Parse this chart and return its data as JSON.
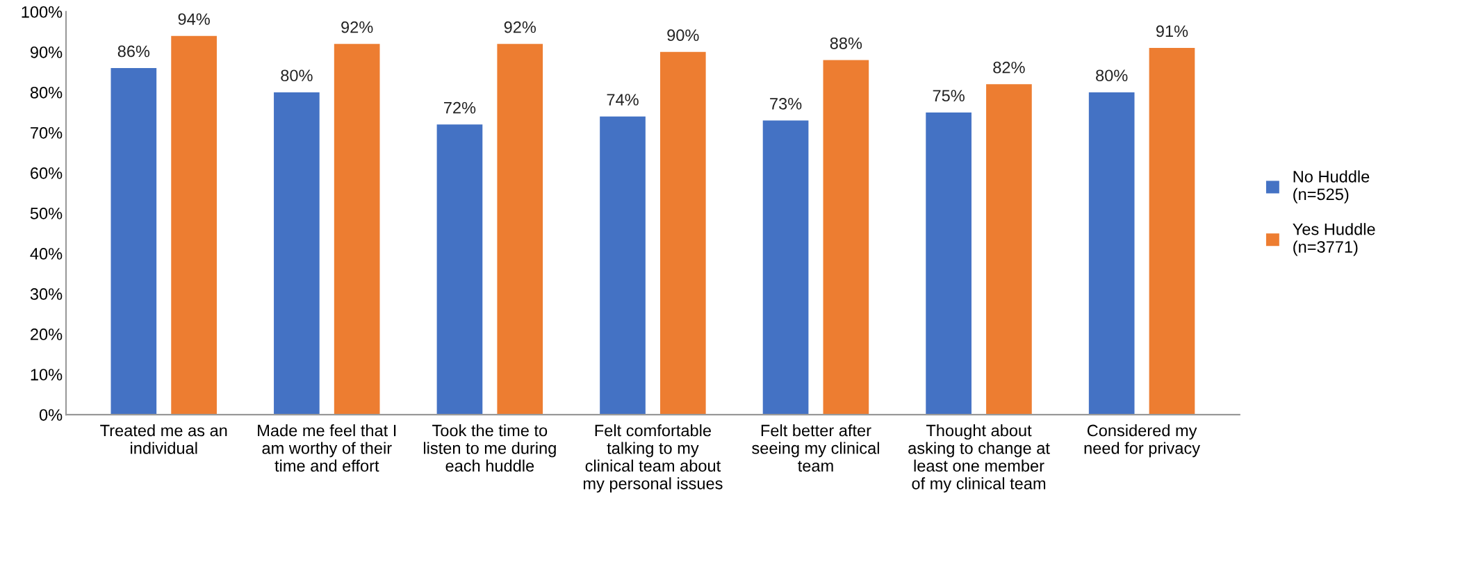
{
  "chart_data": {
    "type": "bar",
    "categories": [
      "Treated me as an\nindividual",
      "Made me feel that I\nam worthy of their\ntime and effort",
      "Took the time to\nlisten to me during\neach huddle",
      "Felt comfortable\ntalking to my\nclinical team about\nmy personal issues",
      "Felt better after\nseeing my clinical\nteam",
      "Thought about\nasking to change at\nleast one member\nof my clinical team",
      "Considered my\nneed for privacy"
    ],
    "series": [
      {
        "name": "No Huddle\n(n=525)",
        "color": "#4472c4",
        "values": [
          86,
          80,
          72,
          74,
          73,
          75,
          80
        ],
        "value_labels": [
          "86%",
          "80%",
          "72%",
          "74%",
          "73%",
          "75%",
          "80%"
        ]
      },
      {
        "name": "Yes Huddle\n(n=3771)",
        "color": "#ed7d31",
        "values": [
          94,
          92,
          92,
          90,
          88,
          82,
          91
        ],
        "value_labels": [
          "94%",
          "92%",
          "92%",
          "90%",
          "88%",
          "82%",
          "91%"
        ]
      }
    ],
    "ylim": [
      0,
      100
    ],
    "yticks": [
      {
        "value": 0,
        "label": "0%"
      },
      {
        "value": 10,
        "label": "10%"
      },
      {
        "value": 20,
        "label": "20%"
      },
      {
        "value": 30,
        "label": "30%"
      },
      {
        "value": 40,
        "label": "40%"
      },
      {
        "value": 50,
        "label": "50%"
      },
      {
        "value": 60,
        "label": "60%"
      },
      {
        "value": 70,
        "label": "70%"
      },
      {
        "value": 80,
        "label": "80%"
      },
      {
        "value": 90,
        "label": "90%"
      },
      {
        "value": 100,
        "label": "100%"
      }
    ],
    "grid": false,
    "legend": "right"
  }
}
